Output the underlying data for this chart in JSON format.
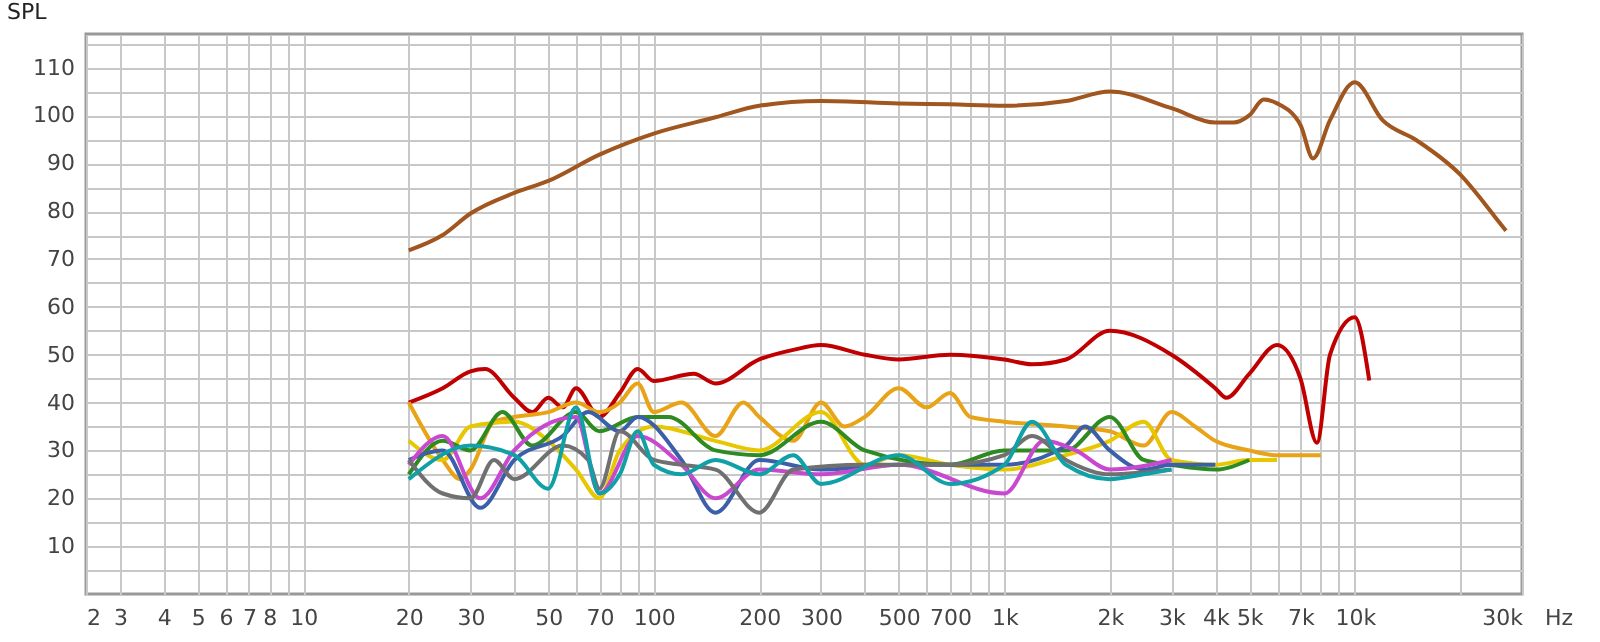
{
  "chart_data": {
    "type": "line",
    "ylabel": "SPL",
    "xlabel": "Hz",
    "log": "x",
    "grid": true,
    "xlim": [
      2.4,
      30000
    ],
    "ylim": [
      0,
      117
    ],
    "xticks": [
      {
        "value": 2.4,
        "label": "2"
      },
      3,
      4,
      5,
      6,
      7,
      8,
      {
        "value": 9,
        "label": null
      },
      10,
      20,
      30,
      {
        "value": 40,
        "label": null
      },
      50,
      {
        "value": 60,
        "label": null
      },
      70,
      {
        "value": 80,
        "label": null
      },
      {
        "value": 90,
        "label": null
      },
      100,
      200,
      300,
      {
        "value": 400,
        "label": null
      },
      500,
      {
        "value": 600,
        "label": null
      },
      700,
      {
        "value": 800,
        "label": null
      },
      {
        "value": 900,
        "label": null
      },
      {
        "value": 1000,
        "label": "1k"
      },
      {
        "value": 2000,
        "label": "2k"
      },
      {
        "value": 3000,
        "label": "3k"
      },
      {
        "value": 4000,
        "label": "4k"
      },
      {
        "value": 5000,
        "label": "5k"
      },
      {
        "value": 6000,
        "label": null
      },
      {
        "value": 7000,
        "label": "7k"
      },
      {
        "value": 8000,
        "label": null
      },
      {
        "value": 9000,
        "label": null
      },
      {
        "value": 10000,
        "label": "10k"
      },
      {
        "value": 20000,
        "label": null
      },
      {
        "value": 30000,
        "label": "30k"
      }
    ],
    "yticks": [
      {
        "value": 5,
        "label": null
      },
      10,
      {
        "value": 15,
        "label": null
      },
      20,
      {
        "value": 25,
        "label": null
      },
      30,
      {
        "value": 35,
        "label": null
      },
      40,
      {
        "value": 45,
        "label": null
      },
      50,
      {
        "value": 55,
        "label": null
      },
      60,
      {
        "value": 65,
        "label": null
      },
      70,
      {
        "value": 75,
        "label": null
      },
      80,
      {
        "value": 85,
        "label": null
      },
      90,
      {
        "value": 95,
        "label": null
      },
      100,
      {
        "value": 105,
        "label": null
      },
      110,
      {
        "value": 115,
        "label": null
      }
    ],
    "series": [
      {
        "color": "#a0561e",
        "x": [
          20,
          25,
          30,
          40,
          50,
          70,
          100,
          150,
          200,
          300,
          500,
          700,
          1000,
          1500,
          2000,
          3000,
          4000,
          4500,
          5000,
          5500,
          6000,
          7000,
          7600,
          8500,
          10000,
          12000,
          15000,
          20000,
          25000,
          27000
        ],
        "values": [
          71.8,
          75,
          79.5,
          83.8,
          86.3,
          91.8,
          96.2,
          99.6,
          102,
          103,
          102.5,
          102.3,
          102,
          103,
          105,
          101.5,
          98.5,
          98.5,
          100,
          103.3,
          102.5,
          98,
          91,
          99,
          106.9,
          99,
          94.8,
          87.6,
          79,
          75.9
        ]
      },
      {
        "color": "#c00000",
        "x": [
          20,
          25,
          30,
          33,
          40,
          45,
          50,
          55,
          60,
          70,
          80,
          90,
          100,
          130,
          150,
          200,
          250,
          300,
          400,
          500,
          700,
          1000,
          1200,
          1500,
          2000,
          3000,
          4000,
          4300,
          5000,
          6000,
          7000,
          7800,
          8500,
          10000,
          11000
        ],
        "values": [
          40,
          43,
          46.5,
          47,
          41,
          38,
          41,
          39,
          43,
          37,
          42,
          47,
          44.5,
          46,
          44,
          49,
          51,
          52,
          50,
          49,
          50,
          49,
          48,
          49,
          55,
          50,
          43,
          41,
          46,
          52,
          45,
          31.6,
          50,
          57.8,
          44.6
        ]
      },
      {
        "color": "#e8a317",
        "x": [
          20,
          25,
          28,
          30,
          35,
          40,
          50,
          60,
          70,
          80,
          90,
          100,
          120,
          150,
          180,
          200,
          250,
          300,
          350,
          400,
          500,
          600,
          700,
          800,
          1000,
          1500,
          2000,
          2500,
          3000,
          3500,
          4000,
          5000,
          6000,
          7000,
          8000
        ],
        "values": [
          40,
          28,
          24,
          26,
          36,
          37,
          38,
          40,
          38,
          40,
          44,
          38,
          40,
          33,
          40,
          37,
          32,
          40,
          35,
          37,
          43,
          39,
          42,
          37,
          36,
          35,
          34,
          31,
          38,
          35,
          32,
          30,
          29,
          29,
          29
        ]
      },
      {
        "color": "#e6c700",
        "x": [
          20,
          25,
          30,
          40,
          50,
          60,
          70,
          80,
          100,
          150,
          200,
          300,
          400,
          500,
          700,
          1000,
          1500,
          2000,
          2500,
          3000,
          4000,
          5000,
          6000
        ],
        "values": [
          32,
          28,
          35,
          36,
          32,
          26,
          20,
          30,
          35,
          32,
          30,
          38,
          27,
          29,
          27,
          26,
          29,
          32,
          36,
          28,
          27,
          28,
          28
        ]
      },
      {
        "color": "#2e8b22",
        "x": [
          20,
          25,
          30,
          37,
          45,
          60,
          70,
          90,
          110,
          150,
          200,
          300,
          400,
          700,
          1000,
          1500,
          2000,
          2500,
          3000,
          4000,
          5000
        ],
        "values": [
          25,
          32,
          30,
          38,
          31,
          38,
          34,
          37,
          37,
          30,
          29,
          36,
          30,
          27,
          30,
          30,
          37,
          28,
          27,
          26,
          28
        ]
      },
      {
        "color": "#3b5fa8",
        "x": [
          20,
          25,
          32,
          40,
          55,
          65,
          80,
          90,
          120,
          150,
          200,
          300,
          500,
          1000,
          1500,
          1700,
          2000,
          2500,
          3000,
          4000
        ],
        "values": [
          28,
          30,
          18,
          28,
          33,
          38,
          34,
          37,
          28,
          17,
          28,
          26,
          27,
          27,
          31,
          35,
          30,
          26,
          27,
          27
        ]
      },
      {
        "color": "#c848d0",
        "x": [
          20,
          25,
          32,
          40,
          60,
          70,
          90,
          120,
          150,
          200,
          300,
          500,
          1000,
          1300,
          1600,
          2000,
          3000
        ],
        "values": [
          27,
          33,
          20,
          30,
          37,
          21,
          33,
          27,
          20,
          26,
          25,
          27,
          21,
          32,
          30,
          26,
          28
        ]
      },
      {
        "color": "#707070",
        "x": [
          20,
          25,
          30,
          35,
          40,
          55,
          65,
          70,
          80,
          100,
          120,
          150,
          200,
          250,
          400,
          700,
          1000,
          1200,
          1500,
          2000,
          3000
        ],
        "values": [
          28,
          21,
          20,
          28,
          24,
          31,
          28,
          22,
          34,
          28,
          27,
          26,
          17,
          26,
          27,
          27,
          29,
          33,
          28,
          25,
          26
        ]
      },
      {
        "color": "#10a0a8",
        "x": [
          20,
          30,
          40,
          50,
          60,
          70,
          80,
          90,
          100,
          120,
          150,
          200,
          250,
          300,
          500,
          700,
          1000,
          1200,
          1500,
          2000,
          2500,
          3000
        ],
        "values": [
          24,
          31,
          29,
          22,
          39,
          21,
          25,
          34,
          27,
          25,
          28,
          25,
          29,
          23,
          29,
          23,
          27,
          36,
          27,
          24,
          25,
          26
        ]
      }
    ]
  }
}
